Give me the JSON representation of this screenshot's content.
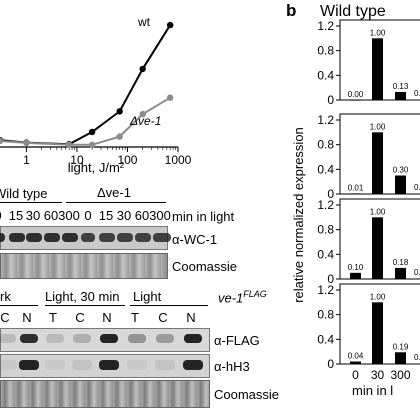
{
  "panel_b_label": "b",
  "panel_b_title": "Wild type",
  "chart_data": [
    {
      "type": "line",
      "title": "",
      "xlabel": "light, J/m2",
      "x_scale": "log",
      "xlim": [
        0.3,
        1000
      ],
      "x_ticks": [
        "1",
        "10",
        "100",
        "1000"
      ],
      "ylabel": "",
      "series": [
        {
          "name": "wt",
          "color": "#000000",
          "x": [
            0.3,
            1,
            7,
            20,
            70,
            200,
            700
          ],
          "y": [
            0.25,
            0.16,
            0.1,
            0.55,
            1.3,
            2.85,
            4.45
          ]
        },
        {
          "name": "Δve-1",
          "color": "#8c8c8c",
          "x": [
            0.3,
            1,
            7,
            20,
            70,
            200,
            700
          ],
          "y": [
            0.22,
            0.15,
            0.08,
            0.08,
            0.38,
            1.2,
            1.8
          ]
        }
      ]
    },
    {
      "type": "bar",
      "ylabel": "relative normalized expression",
      "xlabel": "min in l",
      "categories": [
        "0",
        "30",
        "300"
      ],
      "y_ticks": [
        "0",
        "0.4",
        "0.8",
        "1.2"
      ],
      "ylim": [
        0,
        1.2
      ],
      "panels": [
        {
          "values": [
            0.0,
            1.0,
            0.13
          ],
          "labels": [
            "0.00",
            "1.00",
            "0.13"
          ],
          "next": "0.0"
        },
        {
          "values": [
            0.01,
            1.0,
            0.3
          ],
          "labels": [
            "0.01",
            "1.00",
            "0.30"
          ],
          "next": "0.0"
        },
        {
          "values": [
            0.1,
            1.0,
            0.18
          ],
          "labels": [
            "0.10",
            "1.00",
            "0.18"
          ],
          "next": "0.0"
        },
        {
          "values": [
            0.04,
            1.0,
            0.19
          ],
          "labels": [
            "0.04",
            "1.00",
            "0.19"
          ],
          "next": "0.0"
        }
      ]
    }
  ],
  "blot1": {
    "wildtype_label": "Wild type",
    "delta_label": "Δve-1",
    "lanes": [
      "0",
      "15",
      "30",
      "60",
      "300",
      "0",
      "15",
      "30",
      "60",
      "300"
    ],
    "time_unit": "min in light",
    "row_labels": [
      "α-WC-1",
      "Coomassie"
    ]
  },
  "blot2": {
    "groups": [
      "rk",
      "Light, 30 min",
      "Light"
    ],
    "strain": "ve-1",
    "strain_sup": "FLAG",
    "lanes": [
      "C",
      "N",
      "T",
      "C",
      "N",
      "T",
      "C",
      "N"
    ],
    "row_labels": [
      "α-FLAG",
      "α-hH3",
      "Coomassie"
    ]
  }
}
